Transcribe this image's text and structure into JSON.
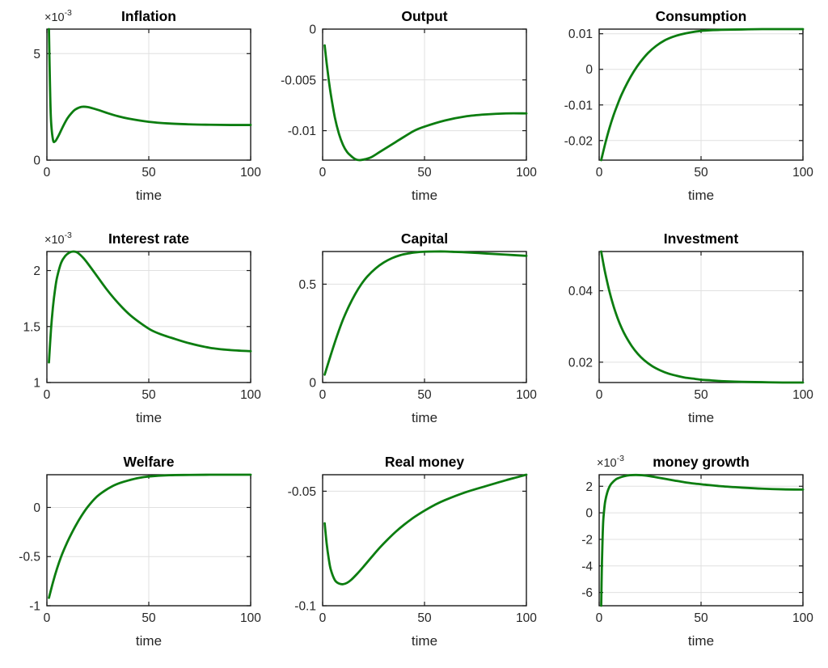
{
  "figure": {
    "background": "#ffffff",
    "line_color": "#0c7d10",
    "axis_color": "#1a1a1a",
    "grid_color": "#e0e0e0",
    "text_color": "#262626",
    "grid": true,
    "legend": "none",
    "xticks": [
      {
        "v": 0,
        "label": "0"
      },
      {
        "v": 50,
        "label": "50"
      },
      {
        "v": 100,
        "label": "100"
      }
    ]
  },
  "chart_data": [
    {
      "type": "line",
      "title": "Inflation",
      "xlabel": "time",
      "y_scale_label": {
        "text": "×10",
        "sup": "-3"
      },
      "xlim": [
        0,
        100
      ],
      "ylim": [
        0,
        6.15
      ],
      "yticks": [
        {
          "v": 5,
          "label": "5"
        },
        {
          "v": 0,
          "label": "0"
        }
      ],
      "x": [
        1,
        1.5,
        2,
        3,
        4,
        5,
        6,
        8,
        10,
        12,
        14,
        17,
        20,
        25,
        30,
        35,
        40,
        50,
        60,
        70,
        80,
        90,
        100
      ],
      "y": [
        6.15,
        3.6,
        1.9,
        0.95,
        0.88,
        1.02,
        1.2,
        1.6,
        1.95,
        2.2,
        2.38,
        2.5,
        2.49,
        2.36,
        2.2,
        2.06,
        1.95,
        1.8,
        1.72,
        1.68,
        1.66,
        1.65,
        1.65
      ]
    },
    {
      "type": "line",
      "title": "Output",
      "xlabel": "time",
      "y_scale_label": null,
      "xlim": [
        0,
        100
      ],
      "ylim": [
        -0.0129,
        0
      ],
      "yticks": [
        {
          "v": 0,
          "label": "0"
        },
        {
          "v": -0.005,
          "label": "-0.005"
        },
        {
          "v": -0.01,
          "label": "-0.01"
        }
      ],
      "x": [
        1,
        2,
        3,
        4,
        6,
        8,
        10,
        12,
        14,
        16,
        18,
        21,
        24,
        28,
        32,
        36,
        40,
        45,
        50,
        60,
        70,
        80,
        90,
        100
      ],
      "y": [
        -0.0016,
        -0.0034,
        -0.005,
        -0.0064,
        -0.0087,
        -0.0103,
        -0.0114,
        -0.0121,
        -0.0125,
        -0.0128,
        -0.0129,
        -0.0128,
        -0.0126,
        -0.0121,
        -0.0116,
        -0.0111,
        -0.0106,
        -0.01,
        -0.0096,
        -0.009,
        -0.0086,
        -0.0084,
        -0.0083,
        -0.0083
      ]
    },
    {
      "type": "line",
      "title": "Consumption",
      "xlabel": "time",
      "y_scale_label": null,
      "xlim": [
        0,
        100
      ],
      "ylim": [
        -0.0255,
        0.0113
      ],
      "yticks": [
        {
          "v": 0.01,
          "label": "0.01"
        },
        {
          "v": 0,
          "label": "0"
        },
        {
          "v": -0.01,
          "label": "-0.01"
        },
        {
          "v": -0.02,
          "label": "-0.02"
        }
      ],
      "x": [
        1,
        3,
        5,
        7,
        9,
        11,
        14,
        17,
        20,
        24,
        28,
        32,
        36,
        40,
        45,
        50,
        55,
        60,
        70,
        80,
        90,
        100
      ],
      "y": [
        -0.0255,
        -0.0208,
        -0.0166,
        -0.013,
        -0.0099,
        -0.0071,
        -0.0036,
        -0.0006,
        0.0019,
        0.0046,
        0.0066,
        0.0081,
        0.0091,
        0.0098,
        0.0104,
        0.0108,
        0.011,
        0.0111,
        0.0112,
        0.0113,
        0.0113,
        0.0113
      ]
    },
    {
      "type": "line",
      "title": "Interest rate",
      "xlabel": "time",
      "y_scale_label": {
        "text": "×10",
        "sup": "-3"
      },
      "xlim": [
        0,
        100
      ],
      "ylim": [
        1,
        2.17
      ],
      "yticks": [
        {
          "v": 2,
          "label": "2"
        },
        {
          "v": 1.5,
          "label": "1.5"
        },
        {
          "v": 1,
          "label": "1"
        }
      ],
      "x": [
        1,
        2,
        3,
        4,
        5,
        7,
        9,
        11,
        13,
        15,
        18,
        21,
        25,
        29,
        33,
        37,
        41,
        46,
        51,
        56,
        61,
        70,
        80,
        90,
        100
      ],
      "y": [
        1.18,
        1.47,
        1.68,
        1.83,
        1.94,
        2.07,
        2.13,
        2.16,
        2.17,
        2.16,
        2.11,
        2.04,
        1.94,
        1.84,
        1.75,
        1.67,
        1.6,
        1.53,
        1.47,
        1.43,
        1.4,
        1.35,
        1.31,
        1.29,
        1.28
      ]
    },
    {
      "type": "line",
      "title": "Capital",
      "xlabel": "time",
      "y_scale_label": null,
      "xlim": [
        0,
        100
      ],
      "ylim": [
        0,
        0.666
      ],
      "yticks": [
        {
          "v": 0.5,
          "label": "0.5"
        },
        {
          "v": 0,
          "label": "0"
        }
      ],
      "x": [
        1,
        4,
        7,
        10,
        13,
        16,
        19,
        22,
        26,
        30,
        34,
        38,
        42,
        46,
        50,
        55,
        60,
        65,
        70,
        80,
        90,
        100
      ],
      "y": [
        0.04,
        0.14,
        0.235,
        0.32,
        0.39,
        0.45,
        0.5,
        0.54,
        0.58,
        0.61,
        0.632,
        0.647,
        0.656,
        0.662,
        0.665,
        0.666,
        0.666,
        0.664,
        0.662,
        0.656,
        0.65,
        0.644
      ]
    },
    {
      "type": "line",
      "title": "Investment",
      "xlabel": "time",
      "y_scale_label": null,
      "xlim": [
        0,
        100
      ],
      "ylim": [
        0.0143,
        0.051
      ],
      "yticks": [
        {
          "v": 0.04,
          "label": "0.04"
        },
        {
          "v": 0.02,
          "label": "0.02"
        }
      ],
      "x": [
        1,
        2,
        3,
        5,
        7,
        9,
        11,
        13,
        16,
        19,
        22,
        26,
        30,
        34,
        38,
        42,
        46,
        50,
        55,
        60,
        70,
        80,
        90,
        100
      ],
      "y": [
        0.051,
        0.0478,
        0.0449,
        0.0399,
        0.0358,
        0.0324,
        0.0296,
        0.0273,
        0.0245,
        0.0223,
        0.0206,
        0.0189,
        0.0177,
        0.0168,
        0.0162,
        0.0157,
        0.0154,
        0.0151,
        0.0149,
        0.0147,
        0.0145,
        0.0144,
        0.0143,
        0.0143
      ]
    },
    {
      "type": "line",
      "title": "Welfare",
      "xlabel": "time",
      "y_scale_label": null,
      "xlim": [
        0,
        100
      ],
      "ylim": [
        -1,
        0.333
      ],
      "yticks": [
        {
          "v": 0,
          "label": "0"
        },
        {
          "v": -0.5,
          "label": "-0.5"
        },
        {
          "v": -1,
          "label": "-1"
        }
      ],
      "x": [
        1,
        3,
        5,
        7,
        9,
        11,
        14,
        17,
        20,
        24,
        28,
        32,
        36,
        40,
        45,
        50,
        60,
        70,
        80,
        90,
        100
      ],
      "y": [
        -0.92,
        -0.76,
        -0.62,
        -0.5,
        -0.4,
        -0.31,
        -0.19,
        -0.085,
        0.005,
        0.1,
        0.165,
        0.215,
        0.25,
        0.275,
        0.3,
        0.315,
        0.328,
        0.331,
        0.333,
        0.333,
        0.333
      ]
    },
    {
      "type": "line",
      "title": "Real money",
      "xlabel": "time",
      "y_scale_label": null,
      "xlim": [
        0,
        100
      ],
      "ylim": [
        -0.1,
        -0.0428
      ],
      "yticks": [
        {
          "v": -0.05,
          "label": "-0.05"
        },
        {
          "v": -0.1,
          "label": "-0.1"
        }
      ],
      "x": [
        1,
        2,
        3,
        4,
        6,
        8,
        10,
        12,
        14,
        17,
        20,
        24,
        28,
        32,
        36,
        40,
        45,
        50,
        55,
        60,
        70,
        80,
        90,
        100
      ],
      "y": [
        -0.064,
        -0.073,
        -0.0795,
        -0.0842,
        -0.0888,
        -0.0903,
        -0.0906,
        -0.09,
        -0.0887,
        -0.086,
        -0.083,
        -0.0788,
        -0.0747,
        -0.071,
        -0.0676,
        -0.0646,
        -0.0613,
        -0.0585,
        -0.056,
        -0.0539,
        -0.0505,
        -0.0478,
        -0.0452,
        -0.0428
      ]
    },
    {
      "type": "line",
      "title": "money growth",
      "xlabel": "time",
      "y_scale_label": {
        "text": "×10",
        "sup": "-3"
      },
      "xlim": [
        0,
        100
      ],
      "ylim": [
        -7,
        2.87
      ],
      "yticks": [
        {
          "v": 2,
          "label": "2"
        },
        {
          "v": 0,
          "label": "0"
        },
        {
          "v": -2,
          "label": "-2"
        },
        {
          "v": -4,
          "label": "-4"
        },
        {
          "v": -6,
          "label": "-6"
        }
      ],
      "x": [
        1,
        1.3,
        1.7,
        2,
        2.5,
        3,
        4,
        5,
        6,
        8,
        10,
        12,
        15,
        18,
        21,
        25,
        29,
        33,
        37,
        42,
        47,
        52,
        60,
        70,
        80,
        90,
        100
      ],
      "y": [
        -7,
        -4.2,
        -1.8,
        -0.6,
        0.3,
        0.9,
        1.55,
        1.95,
        2.2,
        2.5,
        2.65,
        2.75,
        2.83,
        2.85,
        2.83,
        2.76,
        2.65,
        2.54,
        2.43,
        2.3,
        2.2,
        2.12,
        2.0,
        1.9,
        1.82,
        1.77,
        1.75
      ]
    }
  ]
}
